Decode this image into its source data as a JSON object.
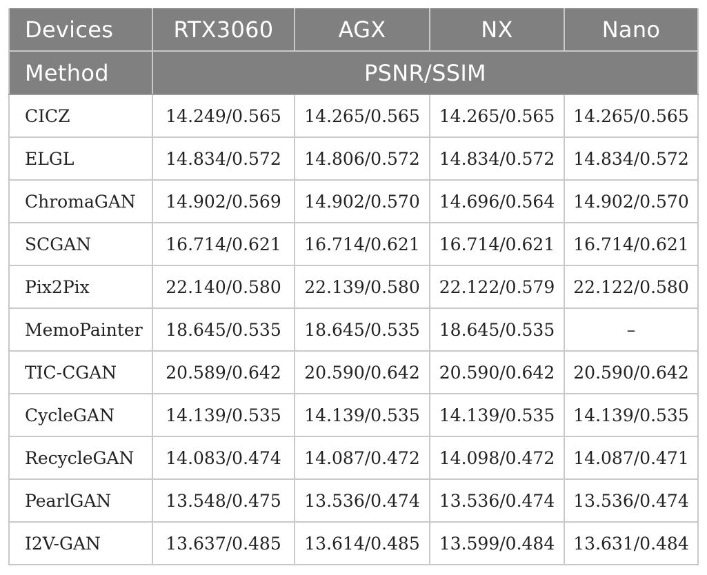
{
  "table": {
    "header": {
      "devices_label": "Devices",
      "devices": [
        "RTX3060",
        "AGX",
        "NX",
        "Nano"
      ],
      "method_label": "Method",
      "metric_label": "PSNR/SSIM"
    },
    "rows": [
      {
        "method": "CICZ",
        "values": [
          "14.249/0.565",
          "14.265/0.565",
          "14.265/0.565",
          "14.265/0.565"
        ]
      },
      {
        "method": "ELGL",
        "values": [
          "14.834/0.572",
          "14.806/0.572",
          "14.834/0.572",
          "14.834/0.572"
        ]
      },
      {
        "method": "ChromaGAN",
        "values": [
          "14.902/0.569",
          "14.902/0.570",
          "14.696/0.564",
          "14.902/0.570"
        ]
      },
      {
        "method": "SCGAN",
        "values": [
          "16.714/0.621",
          "16.714/0.621",
          "16.714/0.621",
          "16.714/0.621"
        ]
      },
      {
        "method": "Pix2Pix",
        "values": [
          "22.140/0.580",
          "22.139/0.580",
          "22.122/0.579",
          "22.122/0.580"
        ]
      },
      {
        "method": "MemoPainter",
        "values": [
          "18.645/0.535",
          "18.645/0.535",
          "18.645/0.535",
          "–"
        ]
      },
      {
        "method": "TIC-CGAN",
        "values": [
          "20.589/0.642",
          "20.590/0.642",
          "20.590/0.642",
          "20.590/0.642"
        ]
      },
      {
        "method": "CycleGAN",
        "values": [
          "14.139/0.535",
          "14.139/0.535",
          "14.139/0.535",
          "14.139/0.535"
        ]
      },
      {
        "method": "RecycleGAN",
        "values": [
          "14.083/0.474",
          "14.087/0.472",
          "14.098/0.472",
          "14.087/0.471"
        ]
      },
      {
        "method": "PearlGAN",
        "values": [
          "13.548/0.475",
          "13.536/0.474",
          "13.536/0.474",
          "13.536/0.474"
        ]
      },
      {
        "method": "I2V-GAN",
        "values": [
          "13.637/0.485",
          "13.614/0.485",
          "13.599/0.484",
          "13.631/0.484"
        ]
      }
    ]
  },
  "colors": {
    "header_background": "#808080",
    "header_text": "#ffffff",
    "grid_line": "#c9c9c9",
    "body_text": "#222222"
  }
}
